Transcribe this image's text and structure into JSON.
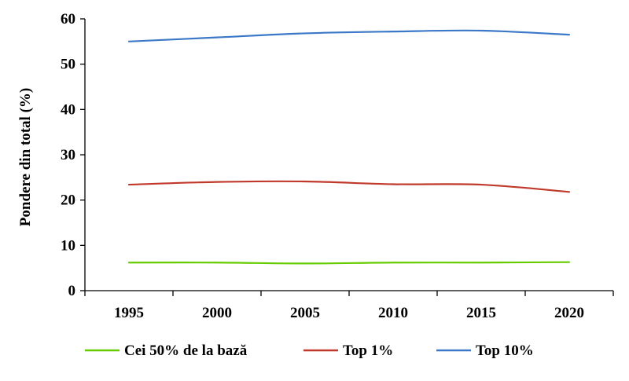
{
  "chart_data": {
    "type": "line",
    "title": "",
    "xlabel": "",
    "ylabel": "Pondere din total (%)",
    "x": [
      1995,
      2000,
      2005,
      2010,
      2015,
      2020
    ],
    "x_tick_labels": [
      "1995",
      "2000",
      "2005",
      "2010",
      "2015",
      "2020"
    ],
    "xlim": [
      1992.5,
      2022.5
    ],
    "ylim": [
      0,
      60
    ],
    "y_ticks": [
      0,
      10,
      20,
      30,
      40,
      50,
      60
    ],
    "y_tick_labels": [
      "0",
      "10",
      "20",
      "30",
      "40",
      "50",
      "60"
    ],
    "grid": false,
    "legend_position": "bottom",
    "series": [
      {
        "name": "Cei 50% de la bază",
        "color": "#66cc00",
        "values": [
          6.2,
          6.2,
          6.0,
          6.2,
          6.2,
          6.3
        ]
      },
      {
        "name": "Top 1%",
        "color": "#c0392b",
        "values": [
          23.4,
          24.0,
          24.1,
          23.5,
          23.4,
          21.8
        ]
      },
      {
        "name": "Top 10%",
        "color": "#3c78c8",
        "values": [
          55.0,
          55.9,
          56.8,
          57.2,
          57.4,
          56.5
        ]
      }
    ]
  }
}
